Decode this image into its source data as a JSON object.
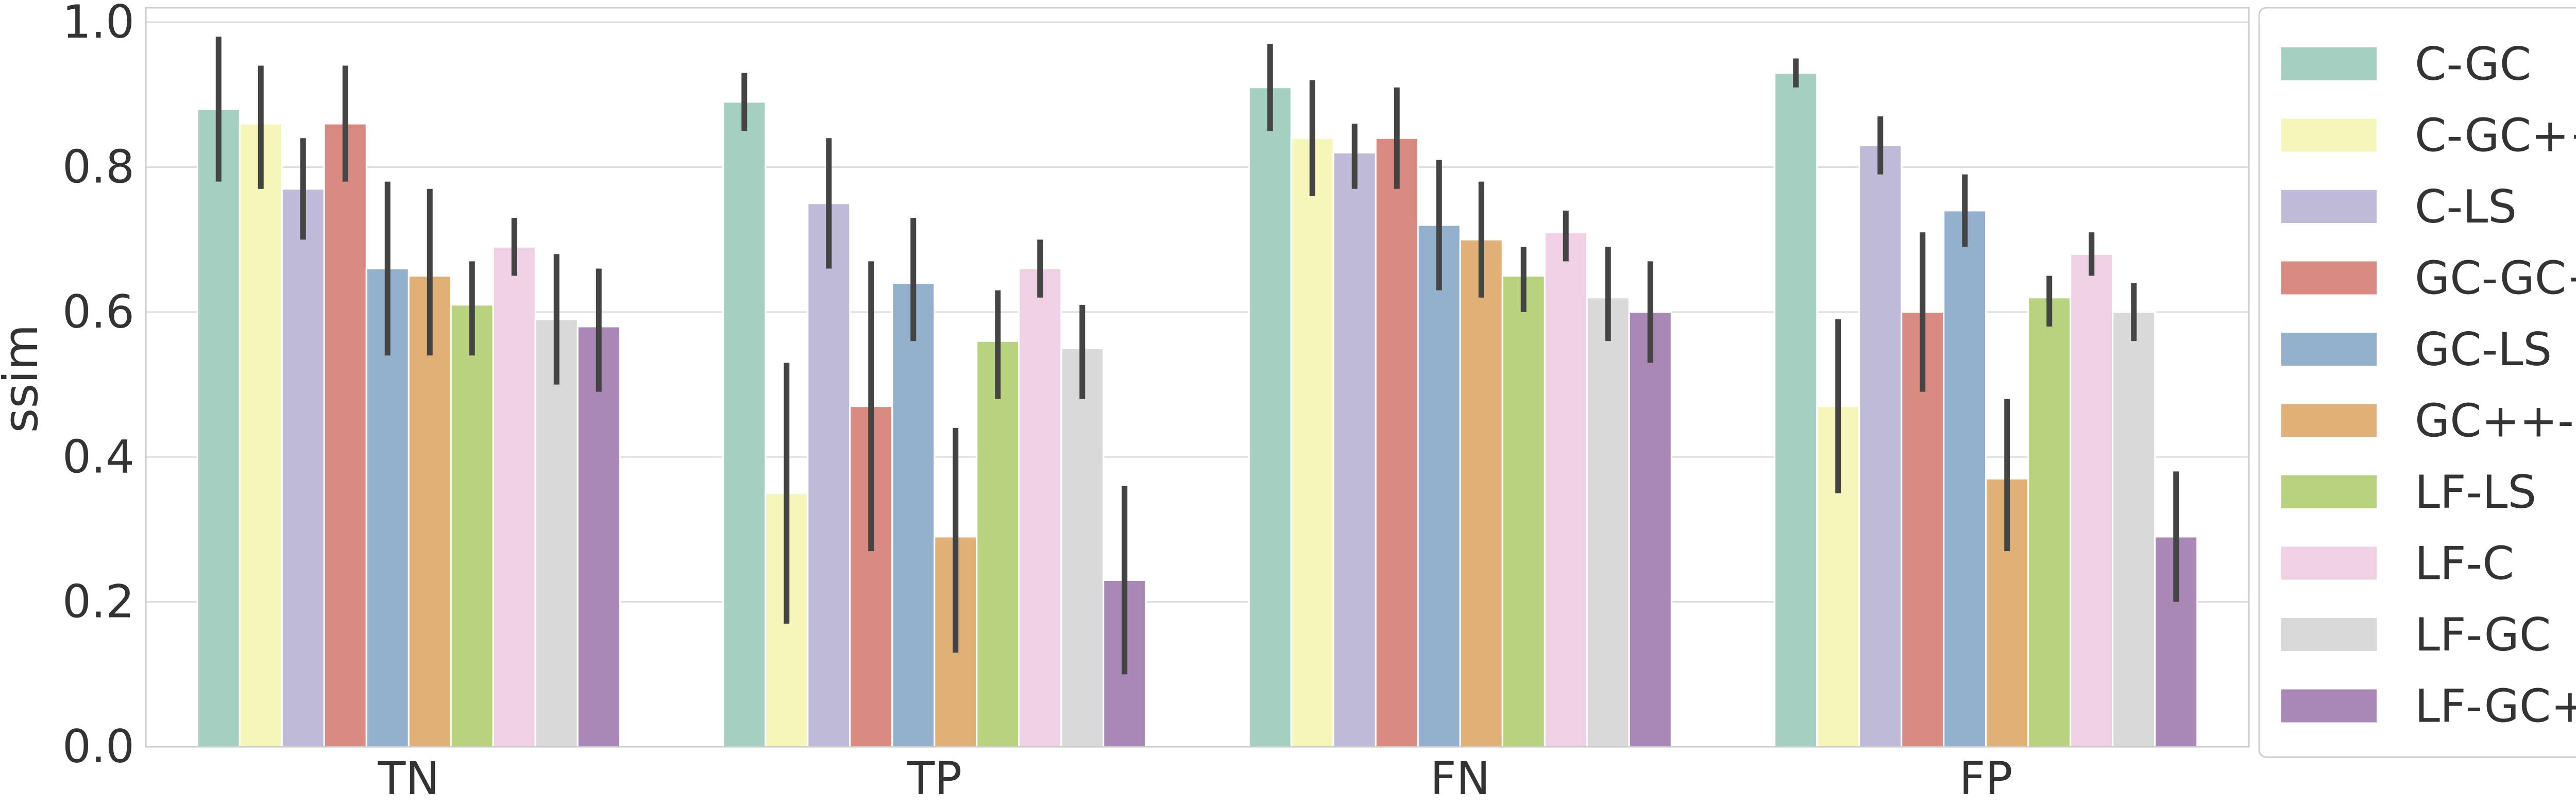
{
  "chart_data": {
    "type": "bar",
    "title": "",
    "xlabel": "",
    "ylabel": "ssim",
    "ylim": [
      0,
      1.02
    ],
    "yticks": [
      "0.0",
      "0.2",
      "0.4",
      "0.6",
      "0.8",
      "1.0"
    ],
    "grid": true,
    "legend_position": "right",
    "categories": [
      "TN",
      "TP",
      "FN",
      "FP"
    ],
    "series": [
      {
        "name": "C-GC",
        "color": "#a5cfc1",
        "values": [
          0.88,
          0.89,
          0.91,
          0.93
        ],
        "err_low": [
          0.78,
          0.85,
          0.85,
          0.91
        ],
        "err_high": [
          0.98,
          0.93,
          0.97,
          0.95
        ]
      },
      {
        "name": "C-GC++",
        "color": "#f6f6bb",
        "values": [
          0.86,
          0.35,
          0.84,
          0.47
        ],
        "err_low": [
          0.77,
          0.17,
          0.76,
          0.35
        ],
        "err_high": [
          0.94,
          0.53,
          0.92,
          0.59
        ]
      },
      {
        "name": "C-LS",
        "color": "#bebad7",
        "values": [
          0.77,
          0.75,
          0.82,
          0.83
        ],
        "err_low": [
          0.7,
          0.66,
          0.77,
          0.79
        ],
        "err_high": [
          0.84,
          0.84,
          0.86,
          0.87
        ]
      },
      {
        "name": "GC-GC++",
        "color": "#d98b81",
        "values": [
          0.86,
          0.47,
          0.84,
          0.6
        ],
        "err_low": [
          0.78,
          0.27,
          0.77,
          0.49
        ],
        "err_high": [
          0.94,
          0.67,
          0.91,
          0.71
        ]
      },
      {
        "name": "GC-LS",
        "color": "#93b1cd",
        "values": [
          0.66,
          0.64,
          0.72,
          0.74
        ],
        "err_low": [
          0.54,
          0.56,
          0.63,
          0.69
        ],
        "err_high": [
          0.78,
          0.73,
          0.81,
          0.79
        ]
      },
      {
        "name": "GC++-LS",
        "color": "#e1b077",
        "values": [
          0.65,
          0.29,
          0.7,
          0.37
        ],
        "err_low": [
          0.54,
          0.13,
          0.62,
          0.27
        ],
        "err_high": [
          0.77,
          0.44,
          0.78,
          0.48
        ]
      },
      {
        "name": "LF-LS",
        "color": "#b8d27e",
        "values": [
          0.61,
          0.56,
          0.65,
          0.62
        ],
        "err_low": [
          0.54,
          0.48,
          0.6,
          0.58
        ],
        "err_high": [
          0.67,
          0.63,
          0.69,
          0.65
        ]
      },
      {
        "name": "LF-C",
        "color": "#efd0e4",
        "values": [
          0.69,
          0.66,
          0.71,
          0.68
        ],
        "err_low": [
          0.65,
          0.62,
          0.67,
          0.65
        ],
        "err_high": [
          0.73,
          0.7,
          0.74,
          0.71
        ]
      },
      {
        "name": "LF-GC",
        "color": "#d9d9d9",
        "values": [
          0.59,
          0.55,
          0.62,
          0.6
        ],
        "err_low": [
          0.5,
          0.48,
          0.56,
          0.56
        ],
        "err_high": [
          0.68,
          0.61,
          0.69,
          0.64
        ]
      },
      {
        "name": "LF-GC++",
        "color": "#aa88b5",
        "values": [
          0.58,
          0.23,
          0.6,
          0.29
        ],
        "err_low": [
          0.49,
          0.1,
          0.53,
          0.2
        ],
        "err_high": [
          0.66,
          0.36,
          0.67,
          0.38
        ]
      }
    ]
  }
}
